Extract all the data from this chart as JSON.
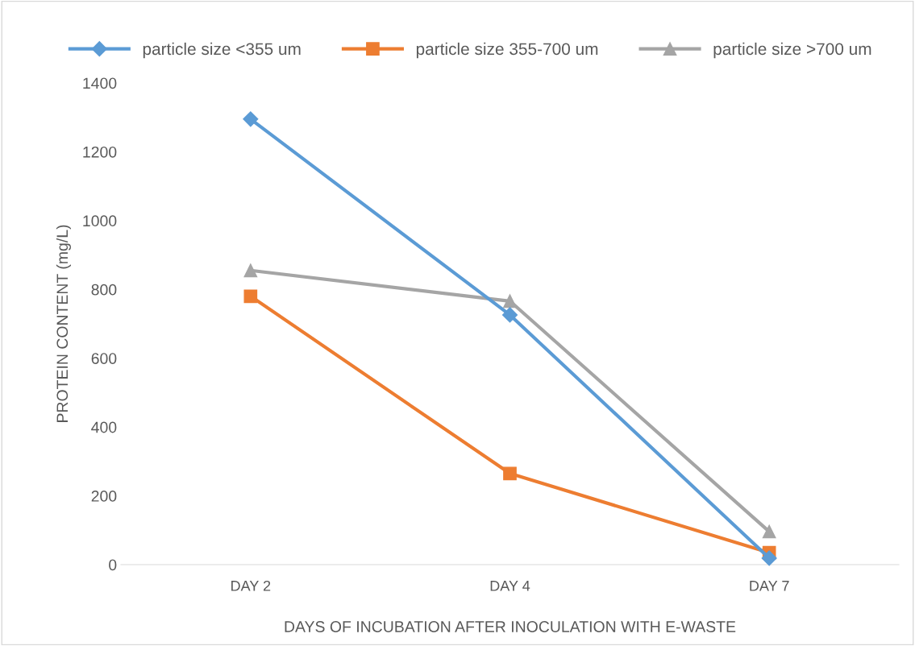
{
  "chart_data": {
    "type": "line",
    "xlabel": "DAYS OF INCUBATION AFTER INOCULATION WITH E-WASTE",
    "ylabel": "PROTEIN CONTENT (mg/L)",
    "categories": [
      "DAY 2",
      "DAY 4",
      "DAY 7"
    ],
    "series": [
      {
        "name": "particle size <355 um",
        "color": "#5b9bd5",
        "values": [
          1295,
          726,
          19
        ],
        "marker": "diamond"
      },
      {
        "name": "particle size 355-700 um",
        "color": "#ed7d31",
        "values": [
          780,
          265,
          35
        ],
        "marker": "square"
      },
      {
        "name": "particle size >700 um",
        "color": "#a5a5a5",
        "values": [
          855,
          766,
          96
        ],
        "marker": "triangle"
      }
    ],
    "ylim": [
      0,
      1400
    ],
    "yticks": [
      0,
      200,
      400,
      600,
      800,
      1000,
      1200,
      1400
    ],
    "grid": false,
    "legend": "top",
    "line_style": "solid"
  }
}
